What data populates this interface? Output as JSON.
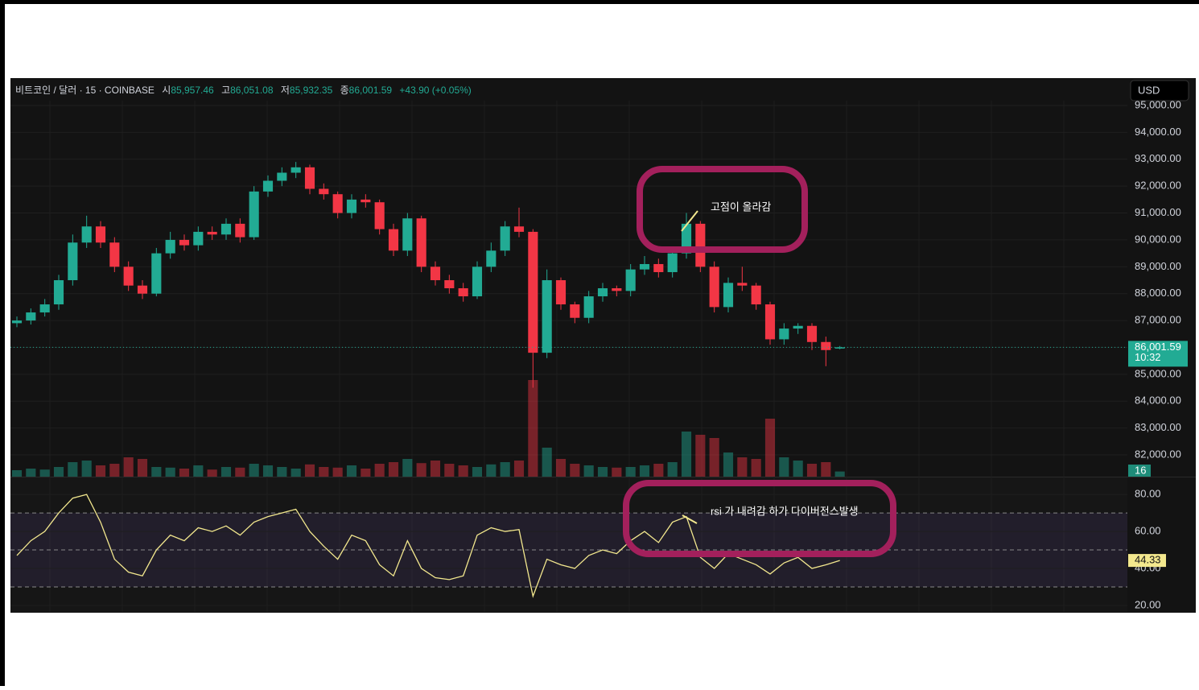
{
  "header": {
    "symbol": "비트코인 / 달러 · 15 · COINBASE",
    "open_label": "시",
    "open": "85,957.46",
    "high_label": "고",
    "high": "86,051.08",
    "low_label": "저",
    "low": "85,932.35",
    "close_label": "종",
    "close": "86,001.59",
    "change": "+43.90 (+0.05%)",
    "currency": "USD"
  },
  "annotations": {
    "price": "고점이 올라감",
    "rsi": "rsi 가 내려감 하가 다이버전스발생"
  },
  "chart_data": [
    {
      "type": "candlestick",
      "up_color": "#22ab94",
      "down_color": "#f23645",
      "open": [
        86900,
        87000,
        87300,
        87600,
        88500,
        89900,
        90500,
        89900,
        89000,
        88300,
        88000,
        89500,
        90000,
        89800,
        90300,
        90200,
        90600,
        90100,
        91800,
        92200,
        92500,
        92700,
        91900,
        91700,
        91000,
        91500,
        91400,
        90400,
        89600,
        90800,
        89000,
        88500,
        88200,
        87900,
        89000,
        89600,
        90500,
        90300,
        85800,
        88500,
        87600,
        87100,
        87900,
        88200,
        88100,
        88900,
        89100,
        88800,
        89500,
        90600,
        89000,
        87500,
        88400,
        88300,
        87600,
        86300,
        86700,
        86800,
        86200,
        85957.46
      ],
      "high": [
        87150,
        87450,
        87800,
        88700,
        90200,
        90900,
        90700,
        90100,
        89200,
        88500,
        89700,
        90300,
        90200,
        90500,
        90500,
        90800,
        90800,
        92000,
        92400,
        92700,
        92900,
        92800,
        92100,
        91800,
        91700,
        91700,
        91500,
        90600,
        91000,
        90900,
        89200,
        88700,
        88400,
        89200,
        89900,
        90700,
        91200,
        90400,
        88900,
        88600,
        87700,
        88100,
        88400,
        88300,
        89100,
        89400,
        89300,
        89700,
        91000,
        90700,
        89200,
        88600,
        89000,
        88400,
        87700,
        86900,
        86900,
        86900,
        86400,
        86051.08
      ],
      "low": [
        86750,
        86850,
        87150,
        87400,
        88300,
        89700,
        89700,
        88800,
        88100,
        87800,
        87900,
        89300,
        89600,
        89600,
        90000,
        90000,
        89900,
        90000,
        91600,
        92000,
        92300,
        91700,
        91500,
        90800,
        90800,
        91200,
        90200,
        89400,
        89400,
        88800,
        88300,
        88000,
        87700,
        87800,
        88800,
        89400,
        90100,
        84500,
        85600,
        87400,
        86900,
        86900,
        87700,
        87900,
        87900,
        88700,
        88600,
        88600,
        89300,
        88800,
        87300,
        87300,
        88100,
        87400,
        86100,
        86100,
        86500,
        85900,
        85300,
        85932.35
      ],
      "close": [
        87000,
        87300,
        87600,
        88500,
        89900,
        90500,
        89900,
        89000,
        88300,
        88000,
        89500,
        90000,
        89800,
        90300,
        90200,
        90600,
        90100,
        91800,
        92200,
        92500,
        92700,
        91900,
        91700,
        91000,
        91500,
        91400,
        90400,
        89600,
        90800,
        89000,
        88500,
        88200,
        87900,
        89000,
        89600,
        90500,
        90300,
        85800,
        88500,
        87600,
        87100,
        87900,
        88200,
        88100,
        88900,
        89100,
        88800,
        89500,
        90600,
        89000,
        87500,
        88400,
        88300,
        87600,
        86300,
        86700,
        86800,
        86200,
        85900,
        86001.59
      ],
      "volume": [
        20,
        25,
        22,
        30,
        45,
        50,
        35,
        40,
        60,
        55,
        30,
        28,
        25,
        35,
        22,
        30,
        28,
        40,
        35,
        30,
        25,
        38,
        30,
        28,
        35,
        25,
        40,
        45,
        55,
        42,
        50,
        40,
        35,
        30,
        38,
        45,
        50,
        300,
        90,
        55,
        40,
        35,
        30,
        28,
        30,
        35,
        40,
        45,
        140,
        130,
        120,
        75,
        60,
        55,
        180,
        60,
        50,
        40,
        45,
        16
      ],
      "volume_ylim": [
        0,
        500
      ],
      "volume_label": "16",
      "ylim": [
        81190,
        95990
      ],
      "yticks": [
        {
          "value": 95000,
          "label": "95,000.00"
        },
        {
          "value": 94000,
          "label": "94,000.00"
        },
        {
          "value": 93000,
          "label": "93,000.00"
        },
        {
          "value": 92000,
          "label": "92,000.00"
        },
        {
          "value": 91000,
          "label": "91,000.00"
        },
        {
          "value": 90000,
          "label": "90,000.00"
        },
        {
          "value": 89000,
          "label": "89,000.00"
        },
        {
          "value": 88000,
          "label": "88,000.00"
        },
        {
          "value": 87000,
          "label": "87,000.00"
        },
        {
          "value": 86000,
          "label": "86,000.00"
        },
        {
          "value": 85000,
          "label": "85,000.00"
        },
        {
          "value": 84000,
          "label": "84,000.00"
        },
        {
          "value": 83000,
          "label": "83,000.00"
        },
        {
          "value": 82000,
          "label": "82,000.00"
        }
      ],
      "last_price": {
        "value": 86001.59,
        "label": "86,001.59"
      },
      "last_time": "10:32",
      "grid": true
    },
    {
      "type": "line",
      "color": "#f3e88e",
      "values": [
        47,
        55,
        60,
        70,
        78,
        80,
        65,
        45,
        38,
        36,
        50,
        58,
        55,
        62,
        60,
        63,
        58,
        65,
        68,
        70,
        72,
        60,
        52,
        45,
        58,
        55,
        42,
        36,
        55,
        40,
        35,
        34,
        36,
        58,
        62,
        60,
        61,
        25,
        45,
        42,
        40,
        47,
        50,
        48,
        55,
        60,
        54,
        65,
        68,
        46,
        40,
        48,
        45,
        42,
        37,
        43,
        46,
        40,
        42,
        44.33
      ],
      "value_label": "44.33",
      "band_lines": [
        30,
        50,
        70
      ],
      "band_color": "#7e57c2",
      "ylim": [
        17.4,
        87
      ],
      "yticks": [
        {
          "value": 80,
          "label": "80.00"
        },
        {
          "value": 60,
          "label": "60.00"
        },
        {
          "value": 40,
          "label": "40.00"
        },
        {
          "value": 20,
          "label": "20.00"
        }
      ],
      "grid": true
    }
  ]
}
